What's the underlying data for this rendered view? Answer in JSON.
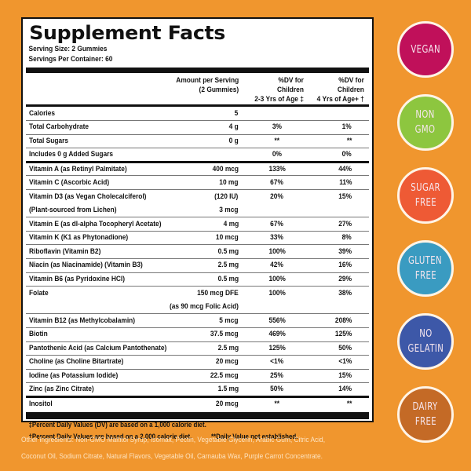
{
  "panel": {
    "title": "Supplement Facts",
    "serving_size": "Serving Size: 2 Gummies",
    "servings_per_container": "Servings Per Container: 60",
    "header": {
      "amount_line1": "Amount per Serving",
      "amount_line2": "(2 Gummies)",
      "dv1_line1": "%DV for Children",
      "dv1_line2": "2-3 Yrs of Age ‡",
      "dv2_line1": "%DV for Children",
      "dv2_line2": "4 Yrs of Age+ †"
    },
    "rows": [
      {
        "name": "Calories",
        "amount": "5",
        "dv1": "",
        "dv2": ""
      },
      {
        "name": "Total Carbohydrate",
        "amount": "4 g",
        "dv1": "3%",
        "dv2": "1%"
      },
      {
        "name": "Total Sugars",
        "amount": "0 g",
        "dv1": "**",
        "dv2": "**"
      },
      {
        "name": "Includes 0 g Added Sugars",
        "amount": "",
        "dv1": "0%",
        "dv2": "0%"
      },
      {
        "name": "Vitamin A (as Retinyl Palmitate)",
        "amount": "400 mcg",
        "dv1": "133%",
        "dv2": "44%"
      },
      {
        "name": "Vitamin C (Ascorbic Acid)",
        "amount": "10 mg",
        "dv1": "67%",
        "dv2": "11%"
      },
      {
        "name": "Vitamin D3 (as Vegan Cholecalciferol)",
        "amount": "(120 IU)",
        "dv1": "20%",
        "dv2": "15%"
      },
      {
        "name": "(Plant-sourced from Lichen)",
        "amount": "3 mcg",
        "dv1": "",
        "dv2": ""
      },
      {
        "name": "Vitamin E (as dl-alpha Tocopheryl Acetate)",
        "amount": "4 mg",
        "dv1": "67%",
        "dv2": "27%"
      },
      {
        "name": "Vitamin K (K1 as Phytonadione)",
        "amount": "10 mcg",
        "dv1": "33%",
        "dv2": "8%"
      },
      {
        "name": "Riboflavin (Vitamin B2)",
        "amount": "0.5 mg",
        "dv1": "100%",
        "dv2": "39%"
      },
      {
        "name": "Niacin (as Niacinamide) (Vitamin B3)",
        "amount": "2.5 mg",
        "dv1": "42%",
        "dv2": "16%"
      },
      {
        "name": "Vitamin B6 (as Pyridoxine HCl)",
        "amount": "0.5 mg",
        "dv1": "100%",
        "dv2": "29%"
      },
      {
        "name": "Folate",
        "amount": "150 mcg DFE",
        "dv1": "100%",
        "dv2": "38%"
      },
      {
        "name": "",
        "amount": "(as 90 mcg Folic Acid)",
        "dv1": "",
        "dv2": ""
      },
      {
        "name": "Vitamin B12 (as Methylcobalamin)",
        "amount": "5 mcg",
        "dv1": "556%",
        "dv2": "208%"
      },
      {
        "name": "Biotin",
        "amount": "37.5 mcg",
        "dv1": "469%",
        "dv2": "125%"
      },
      {
        "name": "Pantothenic Acid (as Calcium Pantothenate)",
        "amount": "2.5 mg",
        "dv1": "125%",
        "dv2": "50%"
      },
      {
        "name": "Choline (as Choline Bitartrate)",
        "amount": "20 mcg",
        "dv1": "<1%",
        "dv2": "<1%"
      },
      {
        "name": "Iodine (as Potassium Iodide)",
        "amount": "22.5 mcg",
        "dv1": "25%",
        "dv2": "15%"
      },
      {
        "name": "Zinc (as Zinc Citrate)",
        "amount": "1.5 mg",
        "dv1": "50%",
        "dv2": "14%"
      },
      {
        "name": "Inositol",
        "amount": "20 mcg",
        "dv1": "**",
        "dv2": "**"
      }
    ],
    "footnotes": {
      "line1": "‡Percent Daily Values (DV) are based on a 1,000 calorie diet.",
      "line2a": "†Percent Daily Values are based on a 2,000 calorie diet.",
      "line2b": "**Daily Value not established."
    }
  },
  "other_ingredients": {
    "line1": "Other Ingredients: Non-GMO Maltitol Syrup, Isomalt, Pectin, Vegetable Glycerin, Arabic Gum, Citric Acid,",
    "line2": "Coconut Oil, Sodium Citrate, Natural Flavors, Vegetable Oil, Carnauba Wax, Purple Carrot Concentrate."
  },
  "badges": [
    {
      "line1": "VEGAN",
      "line2": "",
      "color": "#c0105a"
    },
    {
      "line1": "NON",
      "line2": "GMO",
      "color": "#8dc63f"
    },
    {
      "line1": "SUGAR",
      "line2": "FREE",
      "color": "#ee5a35"
    },
    {
      "line1": "GLUTEN",
      "line2": "FREE",
      "color": "#3a9bc1"
    },
    {
      "line1": "NO",
      "line2": "GELATIN",
      "color": "#3d58a8"
    },
    {
      "line1": "DAIRY",
      "line2": "FREE",
      "color": "#c46a26"
    }
  ],
  "colors": {
    "background": "#f0962e",
    "panel": "#ffffff",
    "ink": "#111111",
    "ingredients_text": "#fde3c0"
  }
}
